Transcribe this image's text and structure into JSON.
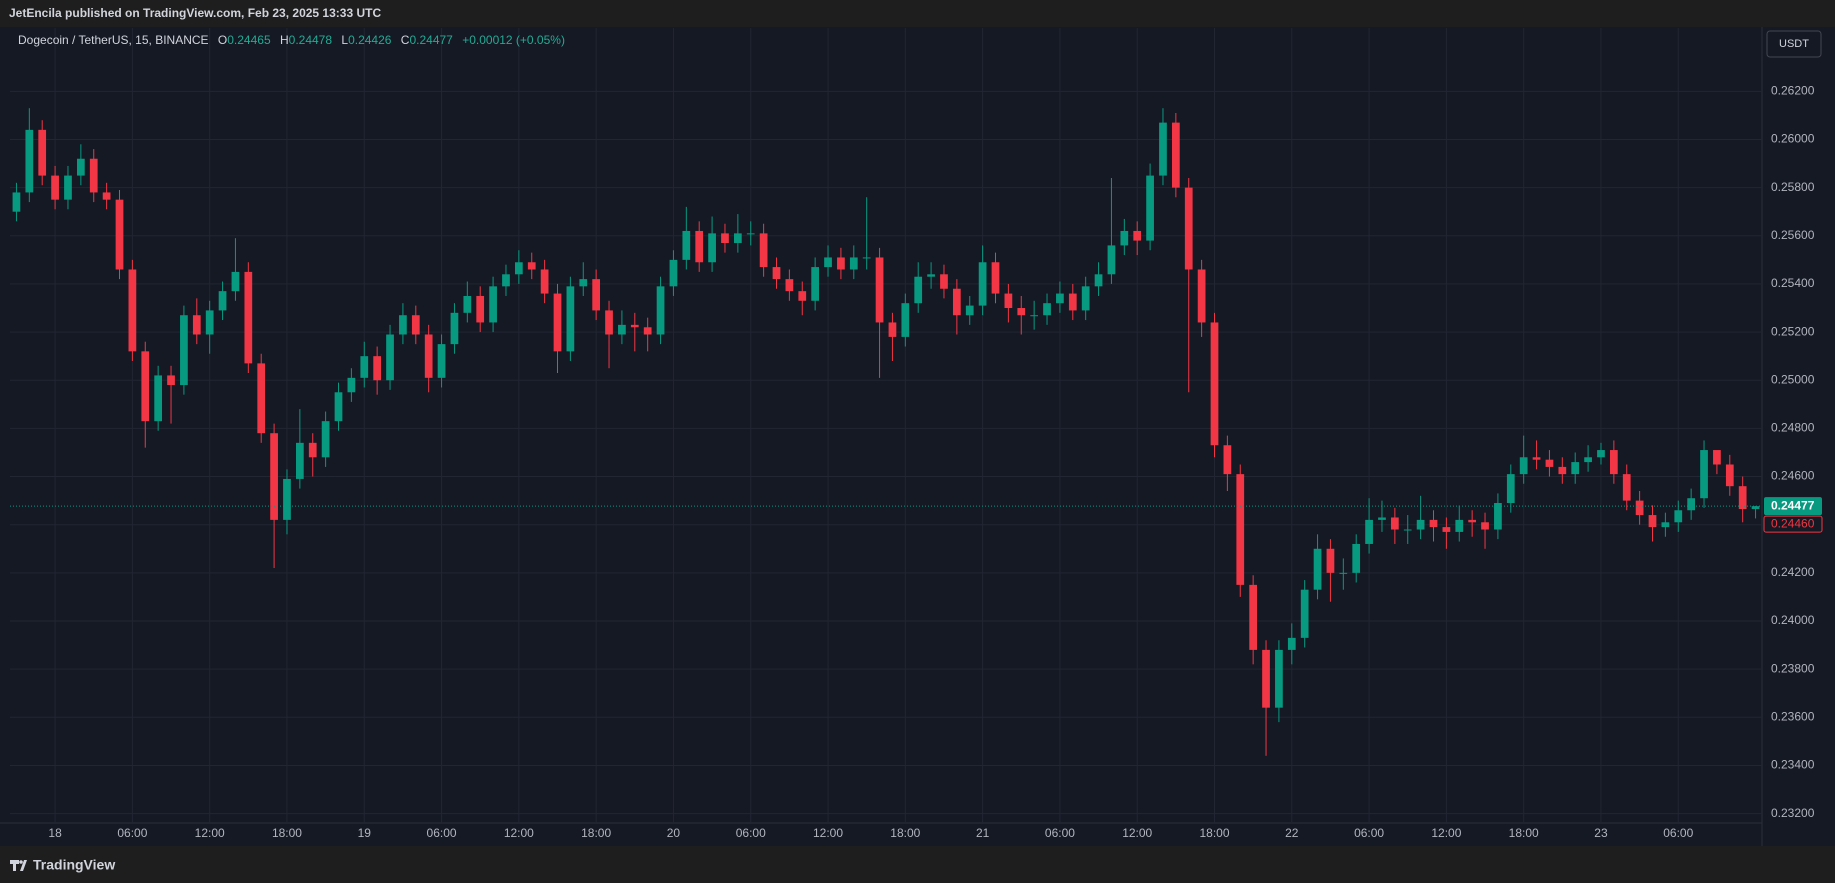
{
  "header": "JetEncila published on TradingView.com, Feb 23, 2025 13:33 UTC",
  "footer": "TradingView",
  "chart_data": {
    "type": "candlestick",
    "title": "Dogecoin / TetherUS, 15, BINANCE",
    "ohlc_letters": [
      "O",
      "H",
      "L",
      "C"
    ],
    "change": "+0.00012 (+0.05%)",
    "currency": "USDT",
    "up_color": "#089981",
    "down_color": "#f23645",
    "grid": true,
    "open": [
      0.257,
      0.2578,
      0.2604,
      0.2585,
      0.2575,
      0.2585,
      0.2592,
      0.2578,
      0.2575,
      0.2546,
      0.2512,
      0.2483,
      0.2502,
      0.2498,
      0.2527,
      0.2519,
      0.2529,
      0.2537,
      0.2545,
      0.2507,
      0.2478,
      0.2442,
      0.2459,
      0.2474,
      0.2468,
      0.2483,
      0.2495,
      0.2501,
      0.251,
      0.25,
      0.2519,
      0.2527,
      0.2519,
      0.2501,
      0.2515,
      0.2528,
      0.2535,
      0.2524,
      0.2539,
      0.2544,
      0.2549,
      0.2546,
      0.2536,
      0.2512,
      0.2539,
      0.2542,
      0.2529,
      0.2519,
      0.2523,
      0.2522,
      0.2519,
      0.2539,
      0.255,
      0.2562,
      0.2549,
      0.2561,
      0.2557,
      0.2561,
      0.2561,
      0.2547,
      0.2542,
      0.2537,
      0.2533,
      0.2547,
      0.2551,
      0.2546,
      0.2551,
      0.2551,
      0.2524,
      0.2518,
      0.2532,
      0.2543,
      0.2544,
      0.2538,
      0.2527,
      0.2531,
      0.2549,
      0.2536,
      0.253,
      0.2527,
      0.2527,
      0.2532,
      0.2536,
      0.2529,
      0.2539,
      0.2544,
      0.2556,
      0.2562,
      0.2558,
      0.2585,
      0.2607,
      0.258,
      0.2546,
      0.2524,
      0.2473,
      0.2461,
      0.2415,
      0.2388,
      0.2364,
      0.2388,
      0.2393,
      0.2413,
      0.243,
      0.242,
      0.242,
      0.2432,
      0.2442,
      0.2443,
      0.2438,
      0.2438,
      0.2442,
      0.2439,
      0.2437,
      0.2442,
      0.2441,
      0.2438,
      0.2449,
      0.2461,
      0.2468,
      0.2467,
      0.2464,
      0.2461,
      0.2466,
      0.2468,
      0.2471,
      0.2461,
      0.245,
      0.2444,
      0.2439,
      0.2441,
      0.2446,
      0.2451,
      0.2471,
      0.2465,
      0.2456,
      0.24465
    ],
    "high": [
      0.2582,
      0.2613,
      0.2608,
      0.2589,
      0.2589,
      0.2598,
      0.2596,
      0.2582,
      0.2579,
      0.255,
      0.2516,
      0.2506,
      0.2506,
      0.2531,
      0.2534,
      0.2533,
      0.2541,
      0.2559,
      0.2549,
      0.2511,
      0.2482,
      0.2463,
      0.2488,
      0.2478,
      0.2487,
      0.2499,
      0.2505,
      0.2516,
      0.2514,
      0.2523,
      0.2532,
      0.2531,
      0.2523,
      0.2519,
      0.2532,
      0.2541,
      0.2539,
      0.2543,
      0.2548,
      0.2554,
      0.2553,
      0.255,
      0.254,
      0.2543,
      0.2549,
      0.2546,
      0.2533,
      0.2529,
      0.2528,
      0.2526,
      0.2543,
      0.2554,
      0.2572,
      0.2566,
      0.2568,
      0.2565,
      0.2569,
      0.2566,
      0.2565,
      0.2551,
      0.2546,
      0.2541,
      0.2551,
      0.2556,
      0.2555,
      0.2556,
      0.2576,
      0.2555,
      0.2528,
      0.2536,
      0.2549,
      0.2549,
      0.2548,
      0.2542,
      0.2535,
      0.2556,
      0.2553,
      0.254,
      0.2535,
      0.2533,
      0.2536,
      0.2541,
      0.254,
      0.2543,
      0.2549,
      0.2584,
      0.2567,
      0.2566,
      0.259,
      0.2613,
      0.2611,
      0.2584,
      0.255,
      0.2528,
      0.2477,
      0.2465,
      0.2419,
      0.2392,
      0.2392,
      0.2399,
      0.2417,
      0.2436,
      0.2434,
      0.2426,
      0.2436,
      0.2451,
      0.245,
      0.2447,
      0.2444,
      0.2452,
      0.2446,
      0.2443,
      0.2448,
      0.2446,
      0.2445,
      0.2453,
      0.2465,
      0.2477,
      0.2475,
      0.2471,
      0.2468,
      0.247,
      0.2473,
      0.2474,
      0.2475,
      0.2465,
      0.2454,
      0.2448,
      0.2445,
      0.245,
      0.2455,
      0.2475,
      0.2469,
      0.2469,
      0.246,
      0.24478
    ],
    "low": [
      0.2566,
      0.2574,
      0.2581,
      0.2571,
      0.2571,
      0.2581,
      0.2574,
      0.2571,
      0.2542,
      0.2508,
      0.2472,
      0.2479,
      0.2482,
      0.2494,
      0.2515,
      0.2511,
      0.2525,
      0.2533,
      0.2503,
      0.2474,
      0.2422,
      0.2436,
      0.2455,
      0.246,
      0.2464,
      0.2479,
      0.2491,
      0.2497,
      0.2494,
      0.2496,
      0.2515,
      0.2515,
      0.2495,
      0.2497,
      0.2511,
      0.2524,
      0.252,
      0.252,
      0.2535,
      0.254,
      0.2542,
      0.2532,
      0.2503,
      0.2508,
      0.2535,
      0.2525,
      0.2505,
      0.2515,
      0.2512,
      0.2512,
      0.2515,
      0.2535,
      0.2546,
      0.2545,
      0.2545,
      0.2553,
      0.2553,
      0.2556,
      0.2543,
      0.2538,
      0.2533,
      0.2527,
      0.2529,
      0.2543,
      0.2542,
      0.2542,
      0.2546,
      0.2501,
      0.2508,
      0.2514,
      0.2528,
      0.2538,
      0.2534,
      0.2519,
      0.2523,
      0.2527,
      0.2532,
      0.2524,
      0.2519,
      0.2521,
      0.2523,
      0.2528,
      0.2525,
      0.2525,
      0.2535,
      0.254,
      0.2552,
      0.2552,
      0.2554,
      0.2581,
      0.2576,
      0.2495,
      0.2518,
      0.2468,
      0.2454,
      0.241,
      0.2382,
      0.2344,
      0.2358,
      0.2382,
      0.2389,
      0.2409,
      0.2408,
      0.2413,
      0.2416,
      0.2428,
      0.2437,
      0.2432,
      0.2432,
      0.2434,
      0.2433,
      0.243,
      0.2433,
      0.2435,
      0.243,
      0.2434,
      0.2445,
      0.2457,
      0.2463,
      0.246,
      0.2457,
      0.2457,
      0.2462,
      0.2465,
      0.2457,
      0.2446,
      0.244,
      0.2433,
      0.2435,
      0.2437,
      0.2442,
      0.2447,
      0.2461,
      0.2452,
      0.2441,
      0.24426
    ],
    "close": [
      0.2578,
      0.2604,
      0.2585,
      0.2575,
      0.2585,
      0.2592,
      0.2578,
      0.2575,
      0.2546,
      0.2512,
      0.2483,
      0.2502,
      0.2498,
      0.2527,
      0.2519,
      0.2529,
      0.2537,
      0.2545,
      0.2507,
      0.2478,
      0.2442,
      0.2459,
      0.2474,
      0.2468,
      0.2483,
      0.2495,
      0.2501,
      0.251,
      0.25,
      0.2519,
      0.2527,
      0.2519,
      0.2501,
      0.2515,
      0.2528,
      0.2535,
      0.2524,
      0.2539,
      0.2544,
      0.2549,
      0.2546,
      0.2536,
      0.2512,
      0.2539,
      0.2542,
      0.2529,
      0.2519,
      0.2523,
      0.2522,
      0.2519,
      0.2539,
      0.255,
      0.2562,
      0.2549,
      0.2561,
      0.2557,
      0.2561,
      0.2561,
      0.2547,
      0.2542,
      0.2537,
      0.2533,
      0.2547,
      0.2551,
      0.2546,
      0.2551,
      0.2551,
      0.2524,
      0.2518,
      0.2532,
      0.2543,
      0.2544,
      0.2538,
      0.2527,
      0.2531,
      0.2549,
      0.2536,
      0.253,
      0.2527,
      0.2527,
      0.2532,
      0.2536,
      0.2529,
      0.2539,
      0.2544,
      0.2556,
      0.2562,
      0.2558,
      0.2585,
      0.2607,
      0.258,
      0.2546,
      0.2524,
      0.2473,
      0.2461,
      0.2415,
      0.2388,
      0.2364,
      0.2388,
      0.2393,
      0.2413,
      0.243,
      0.242,
      0.242,
      0.2432,
      0.2442,
      0.2443,
      0.2438,
      0.2438,
      0.2442,
      0.2439,
      0.2437,
      0.2442,
      0.2441,
      0.2438,
      0.2449,
      0.2461,
      0.2468,
      0.2467,
      0.2464,
      0.2461,
      0.2466,
      0.2468,
      0.2471,
      0.2461,
      0.245,
      0.2444,
      0.2439,
      0.2441,
      0.2446,
      0.2451,
      0.2471,
      0.2465,
      0.2456,
      0.24465,
      0.24477
    ],
    "xlim": [
      -0.5,
      135.5
    ],
    "xticks": [
      {
        "value": 3,
        "label": "18"
      },
      {
        "value": 9,
        "label": "06:00"
      },
      {
        "value": 15,
        "label": "12:00"
      },
      {
        "value": 21,
        "label": "18:00"
      },
      {
        "value": 27,
        "label": "19"
      },
      {
        "value": 33,
        "label": "06:00"
      },
      {
        "value": 39,
        "label": "12:00"
      },
      {
        "value": 45,
        "label": "18:00"
      },
      {
        "value": 51,
        "label": "20"
      },
      {
        "value": 57,
        "label": "06:00"
      },
      {
        "value": 63,
        "label": "12:00"
      },
      {
        "value": 69,
        "label": "18:00"
      },
      {
        "value": 75,
        "label": "21"
      },
      {
        "value": 81,
        "label": "06:00"
      },
      {
        "value": 87,
        "label": "12:00"
      },
      {
        "value": 93,
        "label": "18:00"
      },
      {
        "value": 99,
        "label": "22"
      },
      {
        "value": 105,
        "label": "06:00"
      },
      {
        "value": 111,
        "label": "12:00"
      },
      {
        "value": 117,
        "label": "18:00"
      },
      {
        "value": 123,
        "label": "23"
      },
      {
        "value": 129,
        "label": "06:00"
      }
    ],
    "ylim": [
      0.23161,
      0.26463
    ],
    "yticks": [
      {
        "value": 0.262,
        "label": "0.26200"
      },
      {
        "value": 0.26,
        "label": "0.26000"
      },
      {
        "value": 0.258,
        "label": "0.25800"
      },
      {
        "value": 0.256,
        "label": "0.25600"
      },
      {
        "value": 0.254,
        "label": "0.25400"
      },
      {
        "value": 0.252,
        "label": "0.25200"
      },
      {
        "value": 0.25,
        "label": "0.25000"
      },
      {
        "value": 0.248,
        "label": "0.24800"
      },
      {
        "value": 0.246,
        "label": "0.24600"
      },
      {
        "value": 0.244,
        "label": "0.24400"
      },
      {
        "value": 0.242,
        "label": "0.24200"
      },
      {
        "value": 0.24,
        "label": "0.24000"
      },
      {
        "value": 0.238,
        "label": "0.23800"
      },
      {
        "value": 0.236,
        "label": "0.23600"
      },
      {
        "value": 0.234,
        "label": "0.23400"
      },
      {
        "value": 0.232,
        "label": "0.23200"
      }
    ],
    "price_line": 0.24477,
    "reference_line": {
      "value": 0.2446,
      "label": "0.24460"
    }
  }
}
